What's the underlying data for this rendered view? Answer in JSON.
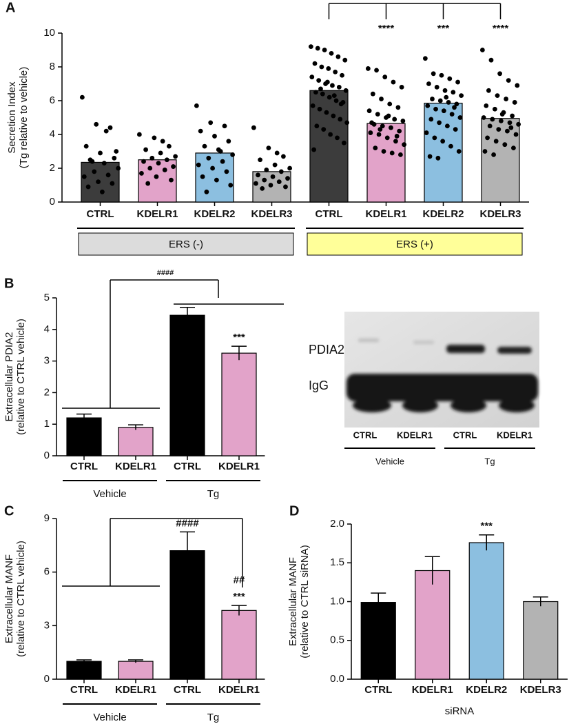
{
  "chart_data": [
    {
      "panel": "A",
      "type": "bar",
      "ylabel": [
        "Secretion Index",
        "(Tg relative to vehicle)"
      ],
      "categories": [
        "CTRL",
        "KDELR1",
        "KDELR2",
        "KDELR3",
        "CTRL",
        "KDELR1",
        "KDELR2",
        "KDELR3"
      ],
      "values": [
        2.35,
        2.5,
        2.9,
        1.8,
        6.6,
        4.65,
        5.85,
        4.95
      ],
      "colors": [
        "#3c3c3c",
        "#e2a3c9",
        "#8cbfe0",
        "#b3b3b3",
        "#3c3c3c",
        "#e2a3c9",
        "#8cbfe0",
        "#b3b3b3"
      ],
      "points": [
        [
          6.2,
          4.6,
          4.4,
          3.3,
          2.9,
          2.6,
          2.5,
          2.3,
          2.0,
          1.8,
          1.6,
          1.5,
          1.2,
          1.1,
          0.9,
          0.6,
          3.0,
          2.4,
          4.2
        ],
        [
          4.0,
          3.8,
          3.3,
          3.1,
          2.9,
          2.7,
          2.6,
          2.5,
          2.4,
          2.3,
          2.1,
          2.0,
          1.9,
          1.7,
          1.5,
          1.3,
          1.1,
          3.6
        ],
        [
          5.7,
          4.7,
          4.5,
          4.2,
          3.9,
          3.6,
          3.3,
          3.1,
          2.8,
          2.6,
          2.4,
          2.2,
          2.0,
          1.8,
          1.5,
          1.3,
          1.0,
          0.6,
          3.0
        ],
        [
          4.4,
          3.2,
          2.7,
          2.5,
          2.2,
          2.0,
          1.9,
          1.8,
          1.6,
          1.5,
          1.4,
          1.3,
          1.2,
          1.1,
          1.0,
          0.9,
          0.8,
          2.9
        ],
        [
          9.2,
          9.1,
          9.0,
          8.8,
          8.6,
          8.4,
          8.2,
          8.0,
          7.9,
          7.7,
          7.5,
          7.4,
          7.2,
          7.0,
          6.9,
          6.8,
          6.6,
          6.5,
          6.4,
          6.2,
          6.0,
          5.9,
          5.7,
          5.5,
          5.3,
          5.1,
          4.9,
          4.7,
          4.5,
          4.3,
          4.0,
          3.8,
          3.5,
          3.1,
          6.7,
          7.1,
          6.3,
          5.8
        ],
        [
          7.9,
          7.8,
          7.4,
          7.1,
          6.8,
          6.4,
          6.1,
          5.8,
          5.6,
          5.4,
          5.2,
          5.0,
          4.9,
          4.8,
          4.6,
          4.5,
          4.4,
          4.2,
          4.1,
          4.0,
          3.8,
          3.6,
          3.4,
          3.2,
          3.0,
          2.9,
          2.8,
          4.7,
          4.3,
          5.1,
          3.9
        ],
        [
          8.5,
          7.6,
          7.5,
          7.3,
          7.1,
          7.0,
          6.8,
          6.6,
          6.5,
          6.3,
          6.1,
          6.0,
          5.9,
          5.8,
          5.7,
          5.5,
          5.4,
          5.2,
          5.0,
          4.9,
          4.7,
          4.5,
          4.3,
          4.1,
          3.8,
          3.6,
          3.3,
          3.0,
          2.7,
          2.6,
          6.2,
          5.6
        ],
        [
          9.0,
          8.4,
          7.6,
          7.2,
          6.9,
          6.6,
          6.3,
          6.1,
          5.9,
          5.7,
          5.5,
          5.3,
          5.1,
          5.0,
          4.9,
          4.8,
          4.7,
          4.6,
          4.5,
          4.3,
          4.2,
          4.0,
          3.8,
          3.6,
          3.4,
          3.2,
          3.0,
          2.8,
          5.2,
          4.4
        ]
      ],
      "ylim": [
        0,
        10
      ],
      "yticks": [
        0,
        2,
        4,
        6,
        8,
        10
      ],
      "annotations": [
        [],
        [],
        [],
        [],
        [],
        [
          "****"
        ],
        [
          "***"
        ],
        [
          "****"
        ]
      ],
      "groups": [
        "ERS (-)",
        "ERS (+)"
      ],
      "group_colors": [
        "#dcdcdc",
        "#ffff99"
      ]
    },
    {
      "panel": "B",
      "type": "bar",
      "ylabel": [
        "Extracellular PDIA2",
        "(relative to CTRL vehicle)"
      ],
      "categories": [
        "CTRL",
        "KDELR1",
        "CTRL",
        "KDELR1"
      ],
      "values": [
        1.2,
        0.9,
        4.45,
        3.25
      ],
      "errors": [
        0.12,
        0.08,
        0.25,
        0.22
      ],
      "colors": [
        "#000000",
        "#e2a3c9",
        "#000000",
        "#e2a3c9"
      ],
      "ylim": [
        0,
        5
      ],
      "yticks": [
        0,
        1,
        2,
        3,
        4,
        5
      ],
      "annotations": [
        [],
        [],
        [],
        [
          "***"
        ]
      ],
      "bracket_label": "####",
      "groups": [
        "Vehicle",
        "Tg"
      ],
      "blot": {
        "bands": [
          "PDIA2",
          "IgG"
        ],
        "lanes": [
          "CTRL",
          "KDELR1",
          "CTRL",
          "KDELR1"
        ],
        "groups": [
          "Vehicle",
          "Tg"
        ]
      }
    },
    {
      "panel": "C",
      "type": "bar",
      "ylabel": [
        "Extracellular MANF",
        "(relative to CTRL vehicle)"
      ],
      "categories": [
        "CTRL",
        "KDELR1",
        "CTRL",
        "KDELR1"
      ],
      "values": [
        1.0,
        1.0,
        7.2,
        3.85
      ],
      "errors": [
        0.08,
        0.08,
        1.05,
        0.28
      ],
      "colors": [
        "#000000",
        "#e2a3c9",
        "#000000",
        "#e2a3c9"
      ],
      "ylim": [
        0,
        9
      ],
      "yticks": [
        0,
        3,
        6,
        9
      ],
      "annotations": [
        [],
        [],
        [
          "####"
        ],
        [
          "##",
          "***"
        ]
      ],
      "groups": [
        "Vehicle",
        "Tg"
      ]
    },
    {
      "panel": "D",
      "type": "bar",
      "ylabel": [
        "Extracellular MANF",
        "(relative to CTRL siRNA)"
      ],
      "categories": [
        "CTRL",
        "KDELR1",
        "KDELR2",
        "KDELR3"
      ],
      "values": [
        0.99,
        1.4,
        1.76,
        1.0
      ],
      "errors": [
        0.12,
        0.18,
        0.1,
        0.06
      ],
      "colors": [
        "#000000",
        "#e2a3c9",
        "#8cbfe0",
        "#b3b3b3"
      ],
      "ylim": [
        0,
        2
      ],
      "yticks": [
        {
          "value": 0,
          "label": "0.0"
        },
        0.5,
        {
          "value": 1,
          "label": "1.0"
        },
        1.5,
        {
          "value": 2,
          "label": "2.0"
        }
      ],
      "annotations": [
        [],
        [],
        [
          "***"
        ],
        []
      ],
      "xlabel": "siRNA"
    }
  ]
}
